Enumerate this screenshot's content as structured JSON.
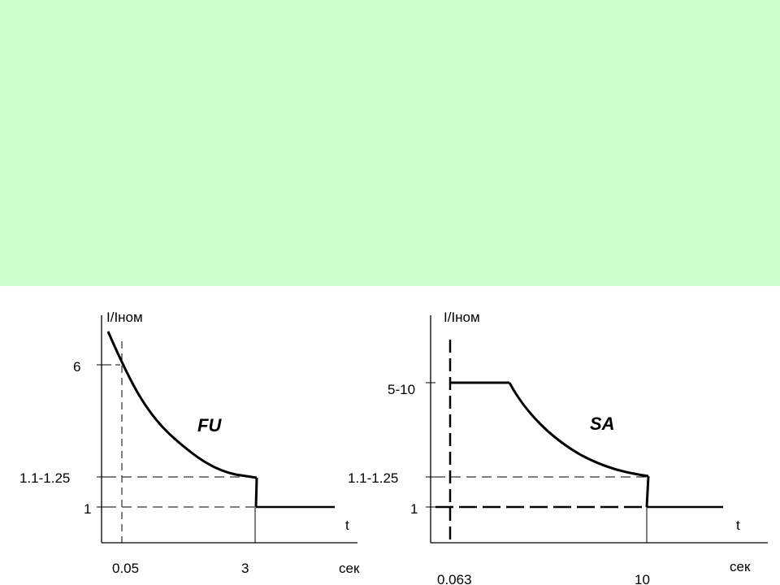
{
  "colors": {
    "banner": "#ccffcc",
    "background": "#ffffff",
    "ink": "#000000"
  },
  "fu": {
    "y_axis_label": "I/Iном",
    "x_axis_label": "t",
    "x_unit": "сек",
    "curve_label": "FU",
    "y_ticks": [
      "6",
      "1.1-1.25",
      "1"
    ],
    "x_ticks": [
      "0.05",
      "3"
    ]
  },
  "sa": {
    "y_axis_label": "I/Iном",
    "x_axis_label": "t",
    "x_unit": "сек",
    "curve_label": "SA",
    "y_ticks": [
      "5-10",
      "1.1-1.25",
      "1"
    ],
    "x_ticks": [
      "0.063",
      "10"
    ]
  }
}
